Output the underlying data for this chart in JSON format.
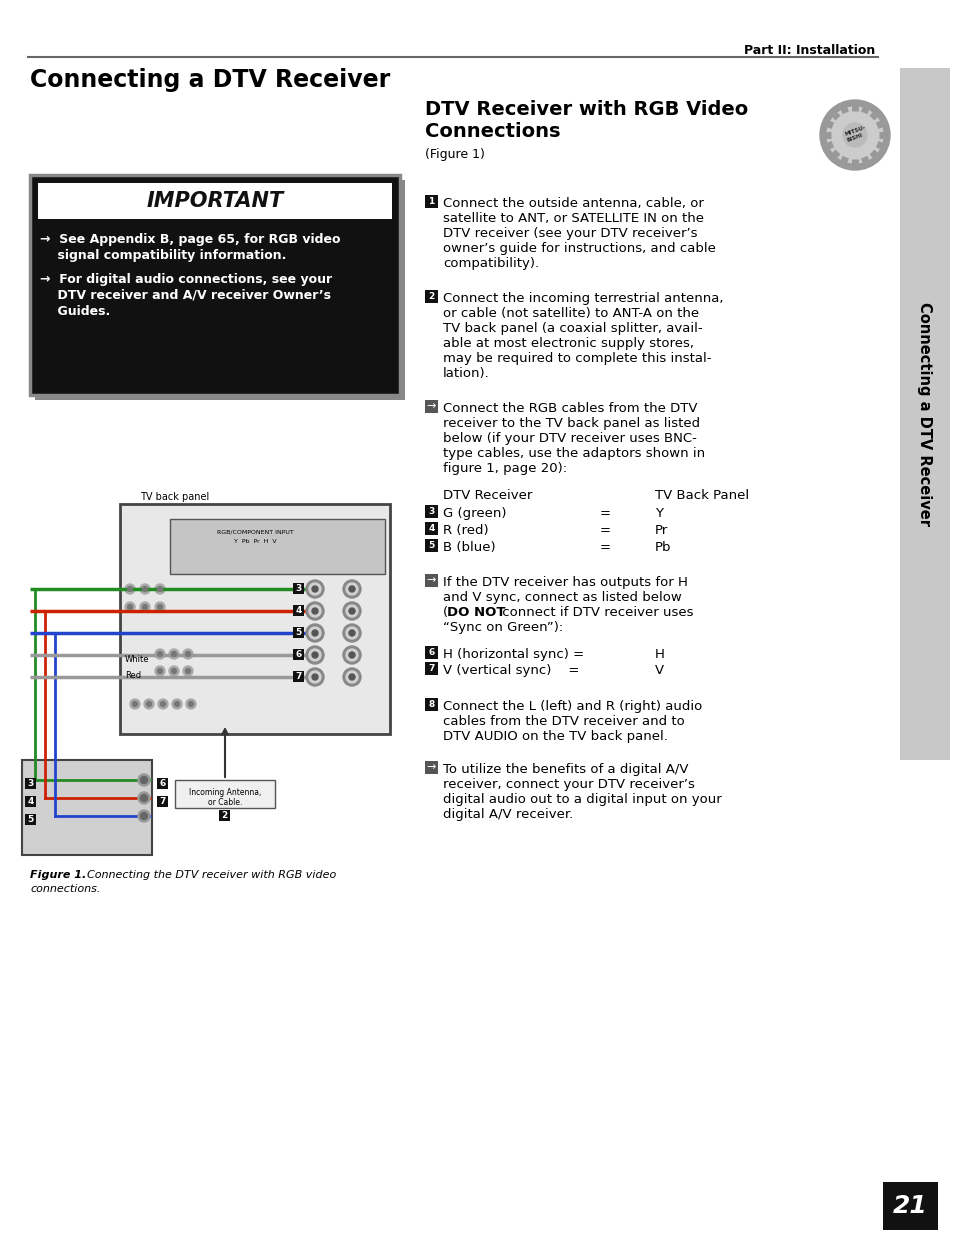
{
  "page_bg": "#ffffff",
  "header_text": "Part II: Installation",
  "main_title": "Connecting a DTV Receiver",
  "section_title_line1": "DTV Receiver with RGB Video",
  "section_title_line2": "Connections",
  "section_subtitle": "(Figure 1)",
  "imp_box_bg": "#111111",
  "imp_box_border": "#888888",
  "important_title": "IMPORTANT",
  "b1_l1": "→  See Appendix B, page 65, for RGB video",
  "b1_l2": "    signal compatibility information.",
  "b2_l1": "→  For digital audio connections, see your",
  "b2_l2": "    DTV receiver and A/V receiver Owner’s",
  "b2_l3": "    Guides.",
  "s1_lines": [
    "Connect the outside antenna, cable, or",
    "satellite to ANT, or SATELLITE IN on the",
    "DTV receiver (see your DTV receiver’s",
    "owner’s guide for instructions, and cable",
    "compatibility)."
  ],
  "s2_lines": [
    "Connect the incoming terrestrial antenna,",
    "or cable (not satellite) to ANT-A on the",
    "TV back panel (a coaxial splitter, avail-",
    "able at most electronic supply stores,",
    "may be required to complete this instal-",
    "lation)."
  ],
  "sa1_lines": [
    "Connect the RGB cables from the DTV",
    "receiver to the TV back panel as listed",
    "below (if your DTV receiver uses BNC-",
    "type cables, use the adaptors shown in",
    "figure 1, page 20):"
  ],
  "table_header_left": "DTV Receiver",
  "table_header_right": "TV Back Panel",
  "table_rows": [
    {
      "num": "3",
      "left": "G (green)",
      "eq": "=",
      "right": "Y"
    },
    {
      "num": "4",
      "left": "R (red)",
      "eq": "=",
      "right": "Pr"
    },
    {
      "num": "5",
      "left": "B (blue)",
      "eq": "=",
      "right": "Pb"
    }
  ],
  "sa2_line1": "If the DTV receiver has outputs for H",
  "sa2_line2": "and V sync, connect as listed below",
  "sa2_line3a": "(",
  "sa2_line3b": "DO NOT",
  "sa2_line3c": " connect if DTV receiver uses",
  "sa2_line4": "“Sync on Green”):",
  "table2_rows": [
    {
      "num": "6",
      "left": "H (horizontal sync) =",
      "right": "H"
    },
    {
      "num": "7",
      "left": "V (vertical sync)    =",
      "right": "V"
    }
  ],
  "s8_lines": [
    "Connect the L (left) and R (right) audio",
    "cables from the DTV receiver and to",
    "DTV AUDIO on the TV back panel."
  ],
  "sa3_lines": [
    "To utilize the benefits of a digital A/V",
    "receiver, connect your DTV receiver’s",
    "digital audio out to a digital input on your",
    "digital A/V receiver."
  ],
  "fig_caption_bold": "Figure 1.",
  "fig_caption_rest": "  Connecting the DTV receiver with RGB video",
  "fig_caption_rest2": "connections.",
  "sidebar_text": "Connecting a DTV Receiver",
  "page_num": "21",
  "sidebar_bg": "#c8c8c8",
  "imp_header_bg": "#ffffff",
  "tv_back_label": "TV back panel",
  "ant_label1": "Incoming Antenna,",
  "ant_label2": "or Cable."
}
